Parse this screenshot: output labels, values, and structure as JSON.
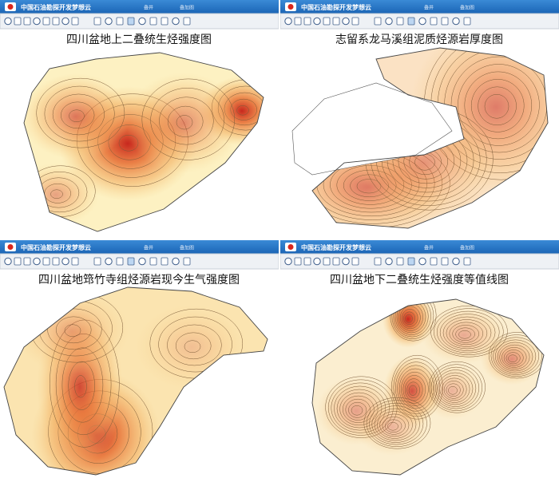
{
  "panels": [
    {
      "app_title": "中国石油勘探开发梦想云",
      "tabs": [
        "叠井",
        "叠加图"
      ],
      "title": "四川盆地上二叠统生烃强度图"
    },
    {
      "app_title": "中国石油勘探开发梦想云",
      "tabs": [
        "叠井",
        "叠加图"
      ],
      "title": "志留系龙马溪组泥质烃源岩厚度图"
    },
    {
      "app_title": "中国石油勘探开发梦想云",
      "tabs": [
        "叠井",
        "叠加图"
      ],
      "title": "四川盆地筇竹寺组烃源岩现今生气强度图"
    },
    {
      "app_title": "中国石油勘探开发梦想云",
      "tabs": [
        "叠井",
        "叠加图"
      ],
      "title": "四川盆地下二叠统生烃强度等值线图"
    }
  ]
}
